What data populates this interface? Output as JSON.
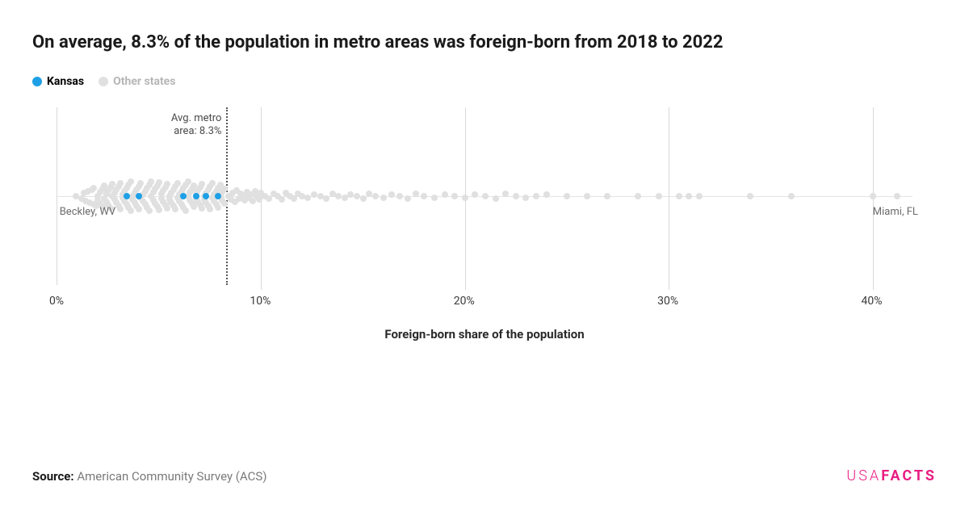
{
  "title": "On average, 8.3% of the population in metro areas was foreign-born from 2018 to 2022",
  "legend": {
    "focus": {
      "label": "Kansas",
      "color": "#1ea0e6"
    },
    "other": {
      "label": "Other states",
      "color": "#e0e0e0"
    }
  },
  "chart": {
    "type": "strip",
    "xlim": [
      0,
      42
    ],
    "ticks": [
      0,
      10,
      20,
      30,
      40
    ],
    "tick_labels": [
      "0%",
      "10%",
      "20%",
      "30%",
      "40%"
    ],
    "axis_title": "Foreign-born share of the population",
    "reference_line": {
      "value": 8.3,
      "label_line1": "Avg. metro",
      "label_line2": "area: 8.3%"
    },
    "baseline_color": "#e3e3e3",
    "grid_color": "#d9d9d9",
    "dot_colors": {
      "other": "#e0e0e0",
      "focus": "#1ea0e6"
    },
    "dot_radius": 4,
    "jitter_max": 20,
    "min_label": {
      "text": "Beckley, WV",
      "x": 0.9
    },
    "max_label": {
      "text": "Miami, FL",
      "x": 41.2
    },
    "focus_points": [
      {
        "x": 3.4,
        "y": 0
      },
      {
        "x": 4.0,
        "y": 0
      },
      {
        "x": 6.2,
        "y": 0
      },
      {
        "x": 6.8,
        "y": 0
      },
      {
        "x": 7.3,
        "y": 0
      },
      {
        "x": 7.9,
        "y": 0
      }
    ],
    "other_points": [
      {
        "x": 0.9,
        "y": 0
      },
      {
        "x": 1.2,
        "y": 3
      },
      {
        "x": 1.3,
        "y": -4
      },
      {
        "x": 1.4,
        "y": 6
      },
      {
        "x": 1.5,
        "y": -6
      },
      {
        "x": 1.6,
        "y": 8
      },
      {
        "x": 1.7,
        "y": -8
      },
      {
        "x": 1.8,
        "y": 10
      },
      {
        "x": 1.8,
        "y": -10
      },
      {
        "x": 1.9,
        "y": 12
      },
      {
        "x": 2.0,
        "y": 0
      },
      {
        "x": 2.0,
        "y": 5
      },
      {
        "x": 2.1,
        "y": -5
      },
      {
        "x": 2.1,
        "y": 9
      },
      {
        "x": 2.2,
        "y": -9
      },
      {
        "x": 2.2,
        "y": 13
      },
      {
        "x": 2.3,
        "y": -13
      },
      {
        "x": 2.3,
        "y": 3
      },
      {
        "x": 2.4,
        "y": -3
      },
      {
        "x": 2.4,
        "y": 7
      },
      {
        "x": 2.5,
        "y": -7
      },
      {
        "x": 2.5,
        "y": 11
      },
      {
        "x": 2.6,
        "y": -11
      },
      {
        "x": 2.6,
        "y": 15
      },
      {
        "x": 2.7,
        "y": -15
      },
      {
        "x": 2.7,
        "y": 0
      },
      {
        "x": 2.8,
        "y": 4
      },
      {
        "x": 2.8,
        "y": -4
      },
      {
        "x": 2.9,
        "y": 8
      },
      {
        "x": 2.9,
        "y": -8
      },
      {
        "x": 3.0,
        "y": 12
      },
      {
        "x": 3.0,
        "y": -12
      },
      {
        "x": 3.1,
        "y": 16
      },
      {
        "x": 3.1,
        "y": -16
      },
      {
        "x": 3.2,
        "y": 2
      },
      {
        "x": 3.2,
        "y": -2
      },
      {
        "x": 3.3,
        "y": 6
      },
      {
        "x": 3.3,
        "y": -6
      },
      {
        "x": 3.4,
        "y": 10
      },
      {
        "x": 3.4,
        "y": -10
      },
      {
        "x": 3.5,
        "y": 14
      },
      {
        "x": 3.5,
        "y": -14
      },
      {
        "x": 3.6,
        "y": 18
      },
      {
        "x": 3.6,
        "y": -18
      },
      {
        "x": 3.7,
        "y": 0
      },
      {
        "x": 3.7,
        "y": 4
      },
      {
        "x": 3.8,
        "y": -4
      },
      {
        "x": 3.8,
        "y": 8
      },
      {
        "x": 3.9,
        "y": -8
      },
      {
        "x": 3.9,
        "y": 12
      },
      {
        "x": 4.0,
        "y": -12
      },
      {
        "x": 4.0,
        "y": 16
      },
      {
        "x": 4.1,
        "y": -16
      },
      {
        "x": 4.1,
        "y": 2
      },
      {
        "x": 4.2,
        "y": -2
      },
      {
        "x": 4.2,
        "y": 6
      },
      {
        "x": 4.3,
        "y": -6
      },
      {
        "x": 4.3,
        "y": 10
      },
      {
        "x": 4.4,
        "y": -10
      },
      {
        "x": 4.4,
        "y": 14
      },
      {
        "x": 4.5,
        "y": -14
      },
      {
        "x": 4.5,
        "y": 18
      },
      {
        "x": 4.6,
        "y": -18
      },
      {
        "x": 4.6,
        "y": 0
      },
      {
        "x": 4.7,
        "y": 5
      },
      {
        "x": 4.7,
        "y": -5
      },
      {
        "x": 4.8,
        "y": 9
      },
      {
        "x": 4.8,
        "y": -9
      },
      {
        "x": 4.9,
        "y": 13
      },
      {
        "x": 4.9,
        "y": -13
      },
      {
        "x": 5.0,
        "y": 17
      },
      {
        "x": 5.0,
        "y": -17
      },
      {
        "x": 5.1,
        "y": 3
      },
      {
        "x": 5.1,
        "y": -3
      },
      {
        "x": 5.2,
        "y": 7
      },
      {
        "x": 5.2,
        "y": -7
      },
      {
        "x": 5.3,
        "y": 11
      },
      {
        "x": 5.3,
        "y": -11
      },
      {
        "x": 5.4,
        "y": 15
      },
      {
        "x": 5.4,
        "y": -15
      },
      {
        "x": 5.5,
        "y": 0
      },
      {
        "x": 5.5,
        "y": 4
      },
      {
        "x": 5.6,
        "y": -4
      },
      {
        "x": 5.6,
        "y": 8
      },
      {
        "x": 5.7,
        "y": -8
      },
      {
        "x": 5.7,
        "y": 12
      },
      {
        "x": 5.8,
        "y": -12
      },
      {
        "x": 5.8,
        "y": 16
      },
      {
        "x": 5.9,
        "y": -16
      },
      {
        "x": 5.9,
        "y": 2
      },
      {
        "x": 6.0,
        "y": -2
      },
      {
        "x": 6.0,
        "y": 6
      },
      {
        "x": 6.1,
        "y": -6
      },
      {
        "x": 6.1,
        "y": 10
      },
      {
        "x": 6.2,
        "y": -10
      },
      {
        "x": 6.2,
        "y": 14
      },
      {
        "x": 6.3,
        "y": -14
      },
      {
        "x": 6.3,
        "y": 18
      },
      {
        "x": 6.4,
        "y": -18
      },
      {
        "x": 6.4,
        "y": 0
      },
      {
        "x": 6.5,
        "y": 5
      },
      {
        "x": 6.5,
        "y": -5
      },
      {
        "x": 6.6,
        "y": 9
      },
      {
        "x": 6.6,
        "y": -9
      },
      {
        "x": 6.7,
        "y": 13
      },
      {
        "x": 6.7,
        "y": -13
      },
      {
        "x": 6.8,
        "y": 3
      },
      {
        "x": 6.8,
        "y": -3
      },
      {
        "x": 6.9,
        "y": 7
      },
      {
        "x": 6.9,
        "y": -7
      },
      {
        "x": 7.0,
        "y": 11
      },
      {
        "x": 7.0,
        "y": -11
      },
      {
        "x": 7.1,
        "y": 15
      },
      {
        "x": 7.1,
        "y": -15
      },
      {
        "x": 7.2,
        "y": 0
      },
      {
        "x": 7.2,
        "y": 4
      },
      {
        "x": 7.3,
        "y": -4
      },
      {
        "x": 7.3,
        "y": 8
      },
      {
        "x": 7.4,
        "y": -8
      },
      {
        "x": 7.4,
        "y": 12
      },
      {
        "x": 7.5,
        "y": -12
      },
      {
        "x": 7.5,
        "y": 16
      },
      {
        "x": 7.6,
        "y": -16
      },
      {
        "x": 7.6,
        "y": 2
      },
      {
        "x": 7.7,
        "y": -2
      },
      {
        "x": 7.7,
        "y": 6
      },
      {
        "x": 7.8,
        "y": -6
      },
      {
        "x": 7.8,
        "y": 10
      },
      {
        "x": 7.9,
        "y": -10
      },
      {
        "x": 7.9,
        "y": 14
      },
      {
        "x": 8.0,
        "y": -14
      },
      {
        "x": 8.0,
        "y": 0
      },
      {
        "x": 8.1,
        "y": 5
      },
      {
        "x": 8.1,
        "y": -5
      },
      {
        "x": 8.2,
        "y": 9
      },
      {
        "x": 8.2,
        "y": -9
      },
      {
        "x": 8.4,
        "y": 0
      },
      {
        "x": 8.5,
        "y": 4
      },
      {
        "x": 8.6,
        "y": -4
      },
      {
        "x": 8.7,
        "y": 7
      },
      {
        "x": 8.8,
        "y": -7
      },
      {
        "x": 8.9,
        "y": 3
      },
      {
        "x": 9.0,
        "y": -3
      },
      {
        "x": 9.1,
        "y": 0
      },
      {
        "x": 9.2,
        "y": 5
      },
      {
        "x": 9.3,
        "y": -5
      },
      {
        "x": 9.4,
        "y": 2
      },
      {
        "x": 9.5,
        "y": -2
      },
      {
        "x": 9.6,
        "y": 6
      },
      {
        "x": 9.7,
        "y": -6
      },
      {
        "x": 9.8,
        "y": 0
      },
      {
        "x": 9.9,
        "y": 4
      },
      {
        "x": 10.0,
        "y": -4
      },
      {
        "x": 10.2,
        "y": 0
      },
      {
        "x": 10.4,
        "y": 3
      },
      {
        "x": 10.6,
        "y": -3
      },
      {
        "x": 10.8,
        "y": 0
      },
      {
        "x": 11.0,
        "y": 4
      },
      {
        "x": 11.2,
        "y": -4
      },
      {
        "x": 11.4,
        "y": 0
      },
      {
        "x": 11.6,
        "y": 3
      },
      {
        "x": 11.8,
        "y": -3
      },
      {
        "x": 12.0,
        "y": 0
      },
      {
        "x": 12.3,
        "y": 2
      },
      {
        "x": 12.6,
        "y": -2
      },
      {
        "x": 12.9,
        "y": 0
      },
      {
        "x": 13.2,
        "y": 3
      },
      {
        "x": 13.5,
        "y": -3
      },
      {
        "x": 13.8,
        "y": 0
      },
      {
        "x": 14.1,
        "y": 2
      },
      {
        "x": 14.4,
        "y": -2
      },
      {
        "x": 14.7,
        "y": 0
      },
      {
        "x": 15.0,
        "y": 3
      },
      {
        "x": 15.3,
        "y": -3
      },
      {
        "x": 15.6,
        "y": 0
      },
      {
        "x": 16.0,
        "y": 2
      },
      {
        "x": 16.4,
        "y": -2
      },
      {
        "x": 16.8,
        "y": 0
      },
      {
        "x": 17.2,
        "y": 3
      },
      {
        "x": 17.6,
        "y": -3
      },
      {
        "x": 18.0,
        "y": 0
      },
      {
        "x": 18.5,
        "y": 2
      },
      {
        "x": 19.0,
        "y": -2
      },
      {
        "x": 19.5,
        "y": 0
      },
      {
        "x": 20.0,
        "y": 2
      },
      {
        "x": 20.5,
        "y": -2
      },
      {
        "x": 21.0,
        "y": 0
      },
      {
        "x": 21.5,
        "y": 3
      },
      {
        "x": 22.0,
        "y": -3
      },
      {
        "x": 22.5,
        "y": 0
      },
      {
        "x": 23.0,
        "y": 2
      },
      {
        "x": 23.5,
        "y": 0
      },
      {
        "x": 24.0,
        "y": -2
      },
      {
        "x": 25.0,
        "y": 0
      },
      {
        "x": 26.0,
        "y": 0
      },
      {
        "x": 27.0,
        "y": 0
      },
      {
        "x": 28.5,
        "y": 0
      },
      {
        "x": 29.5,
        "y": 0
      },
      {
        "x": 30.5,
        "y": 0
      },
      {
        "x": 31.0,
        "y": 0
      },
      {
        "x": 31.5,
        "y": 0
      },
      {
        "x": 34.0,
        "y": 0
      },
      {
        "x": 36.0,
        "y": 0
      },
      {
        "x": 40.0,
        "y": 0
      },
      {
        "x": 41.2,
        "y": 0
      }
    ]
  },
  "source": {
    "label": "Source:",
    "value": "American Community Survey (ACS)"
  },
  "brand": {
    "part1": "USA",
    "part2": "FACTS",
    "color": "#e91e82"
  }
}
